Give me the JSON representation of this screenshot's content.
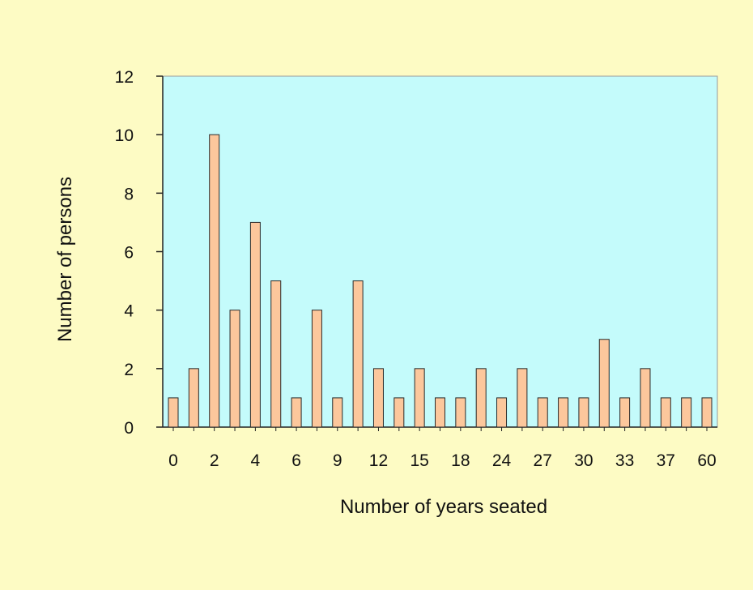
{
  "colors": {
    "page_background": "#fdfbc4",
    "plot_background": "#c4fbfb",
    "bar_fill": "#fcc79c",
    "bar_stroke": "#2a2a2a"
  },
  "chart_data": {
    "type": "bar",
    "title": "",
    "xlabel": "Number of years seated",
    "ylabel": "Number of persons",
    "ylim": [
      0,
      12
    ],
    "y_ticks": [
      0,
      2,
      4,
      6,
      8,
      10,
      12
    ],
    "grid": false,
    "legend": "none",
    "bar_count": 27,
    "values": [
      1,
      2,
      10,
      4,
      7,
      5,
      1,
      4,
      1,
      5,
      2,
      1,
      2,
      1,
      1,
      2,
      1,
      2,
      1,
      1,
      1,
      3,
      1,
      2,
      1,
      1,
      1
    ],
    "x_tick_labels": [
      {
        "bar_index": 0,
        "label": "0"
      },
      {
        "bar_index": 2,
        "label": "2"
      },
      {
        "bar_index": 4,
        "label": "4"
      },
      {
        "bar_index": 6,
        "label": "6"
      },
      {
        "bar_index": 8,
        "label": "9"
      },
      {
        "bar_index": 10,
        "label": "12"
      },
      {
        "bar_index": 12,
        "label": "15"
      },
      {
        "bar_index": 14,
        "label": "18"
      },
      {
        "bar_index": 16,
        "label": "24"
      },
      {
        "bar_index": 18,
        "label": "27"
      },
      {
        "bar_index": 20,
        "label": "30"
      },
      {
        "bar_index": 22,
        "label": "33"
      },
      {
        "bar_index": 24,
        "label": "37"
      },
      {
        "bar_index": 26,
        "label": "60"
      }
    ]
  }
}
